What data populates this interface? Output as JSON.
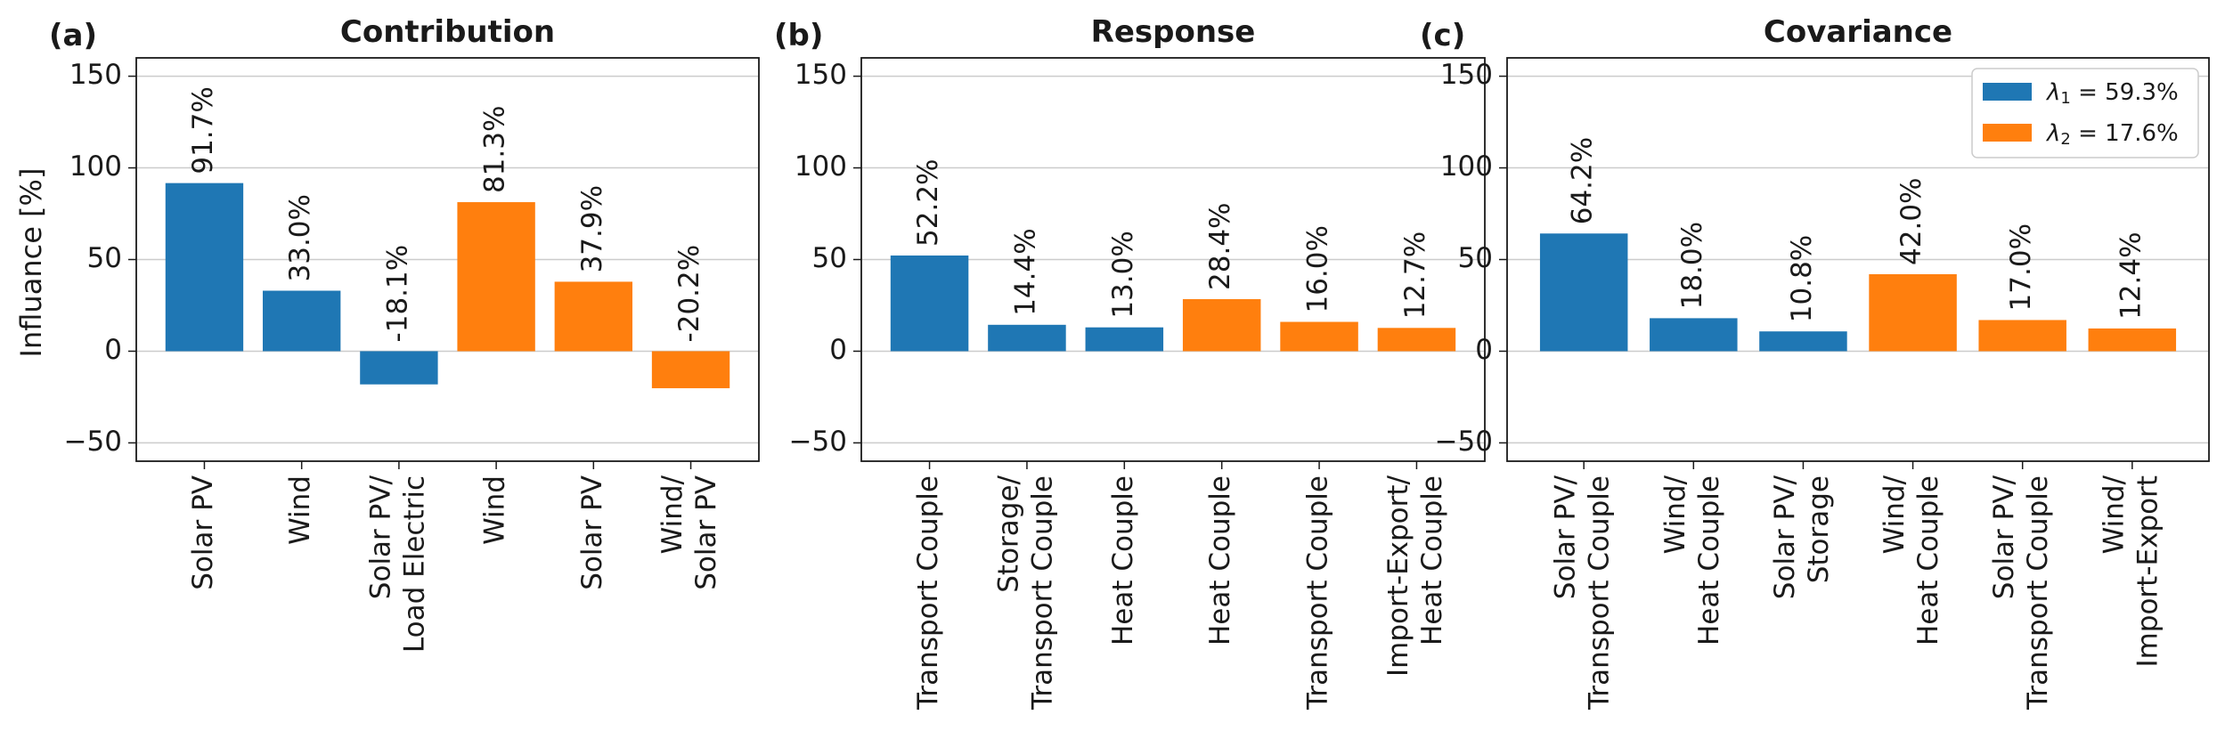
{
  "figure": {
    "ylabel": "Influance [%]",
    "ylim": [
      -60,
      160
    ],
    "yticks": [
      -50,
      0,
      50,
      100,
      150
    ],
    "colors": {
      "lambda1": "#1f77b4",
      "lambda2": "#ff7f0e",
      "grid": "#cccccc"
    },
    "legend": {
      "placement": "top-right",
      "entries": [
        {
          "symbol": "λ",
          "sub": "1",
          "rest": " = 59.3%",
          "series": "lambda1"
        },
        {
          "symbol": "λ",
          "sub": "2",
          "rest": " = 17.6%",
          "series": "lambda2"
        }
      ]
    }
  },
  "chart_data": [
    {
      "type": "bar",
      "letter": "(a)",
      "title": "Contribution",
      "ylabel": "Influance [%]",
      "ylim": [
        -60,
        160
      ],
      "grid": true,
      "categories": [
        [
          "Solar PV"
        ],
        [
          "Wind"
        ],
        [
          "Solar PV/",
          "Load Electric"
        ],
        [
          "Wind"
        ],
        [
          "Solar PV"
        ],
        [
          "Wind/",
          "Solar PV"
        ]
      ],
      "values": [
        91.7,
        33.0,
        -18.1,
        81.3,
        37.9,
        -20.2
      ],
      "labels": [
        "91.7%",
        "33.0%",
        "-18.1%",
        "81.3%",
        "37.9%",
        "-20.2%"
      ],
      "series_of_bar": [
        "lambda1",
        "lambda1",
        "lambda1",
        "lambda2",
        "lambda2",
        "lambda2"
      ]
    },
    {
      "type": "bar",
      "letter": "(b)",
      "title": "Response",
      "ylabel": "",
      "ylim": [
        -60,
        160
      ],
      "grid": true,
      "categories": [
        [
          "Transport Couple"
        ],
        [
          "Storage/",
          "Transport Couple"
        ],
        [
          "Heat Couple"
        ],
        [
          "Heat Couple"
        ],
        [
          "Transport Couple"
        ],
        [
          "Import-Export/",
          "Heat Couple"
        ]
      ],
      "values": [
        52.2,
        14.4,
        13.0,
        28.4,
        16.0,
        12.7
      ],
      "labels": [
        "52.2%",
        "14.4%",
        "13.0%",
        "28.4%",
        "16.0%",
        "12.7%"
      ],
      "series_of_bar": [
        "lambda1",
        "lambda1",
        "lambda1",
        "lambda2",
        "lambda2",
        "lambda2"
      ]
    },
    {
      "type": "bar",
      "letter": "(c)",
      "title": "Covariance",
      "ylabel": "",
      "ylim": [
        -60,
        160
      ],
      "grid": true,
      "legend": true,
      "categories": [
        [
          "Solar PV/",
          "Transport Couple"
        ],
        [
          "Wind/",
          "Heat Couple"
        ],
        [
          "Solar PV/",
          "Storage"
        ],
        [
          "Wind/",
          "Heat Couple"
        ],
        [
          "Solar PV/",
          "Transport Couple"
        ],
        [
          "Wind/",
          "Import-Export"
        ]
      ],
      "values": [
        64.2,
        18.0,
        10.8,
        42.0,
        17.0,
        12.4
      ],
      "labels": [
        "64.2%",
        "18.0%",
        "10.8%",
        "42.0%",
        "17.0%",
        "12.4%"
      ],
      "series_of_bar": [
        "lambda1",
        "lambda1",
        "lambda1",
        "lambda2",
        "lambda2",
        "lambda2"
      ]
    }
  ]
}
